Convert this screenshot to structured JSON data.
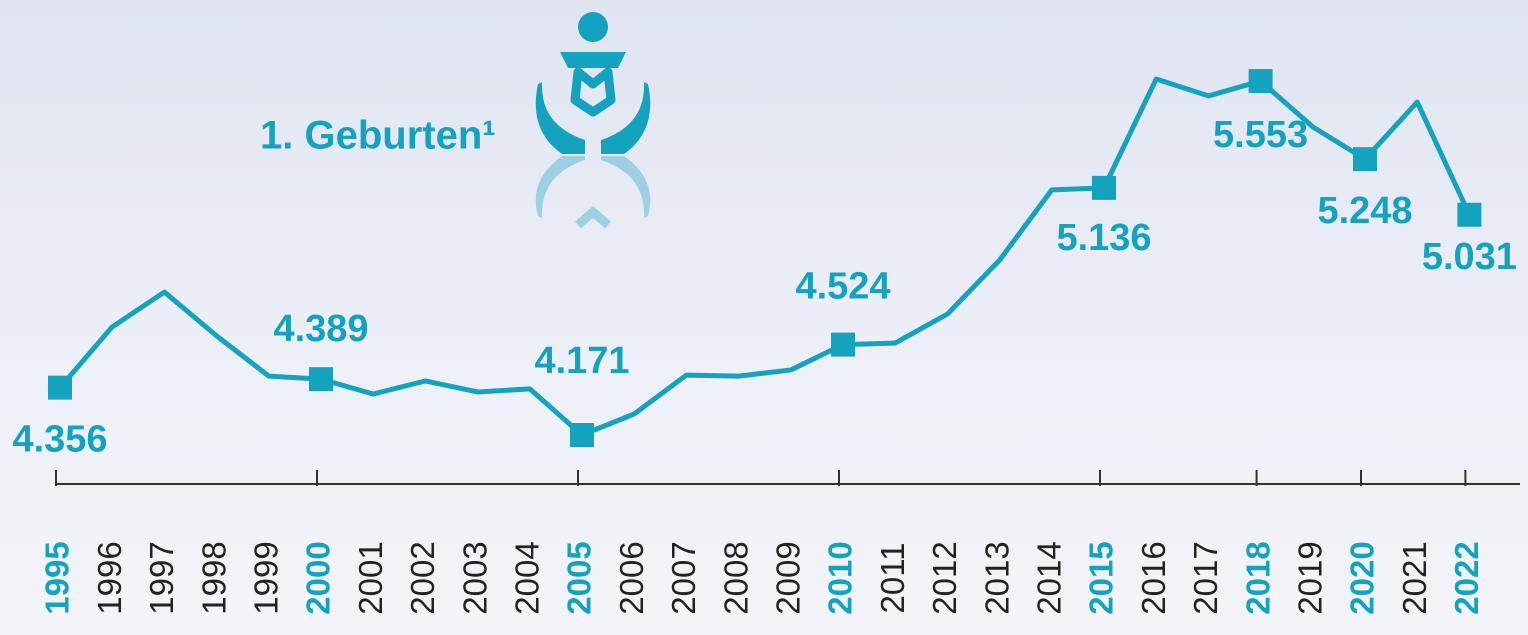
{
  "chart_data": {
    "type": "line",
    "title": "1. Geburten¹",
    "categories": [
      "1995",
      "1996",
      "1997",
      "1998",
      "1999",
      "2000",
      "2001",
      "2002",
      "2003",
      "2004",
      "2005",
      "2006",
      "2007",
      "2008",
      "2009",
      "2010",
      "2011",
      "2012",
      "2013",
      "2014",
      "2015",
      "2016",
      "2017",
      "2018",
      "2019",
      "2020",
      "2021",
      "2022"
    ],
    "values": [
      4356,
      4593,
      4729,
      4558,
      4401,
      4389,
      4331,
      4382,
      4339,
      4351,
      4171,
      4253,
      4405,
      4401,
      4425,
      4524,
      4530,
      4643,
      4854,
      5128,
      5136,
      5561,
      5495,
      5553,
      5374,
      5248,
      5471,
      5031
    ],
    "value_labels": [
      "4.356",
      null,
      null,
      null,
      null,
      "4.389",
      null,
      null,
      null,
      null,
      "4.171",
      null,
      null,
      null,
      null,
      "4.524",
      null,
      null,
      null,
      null,
      "5.136",
      null,
      null,
      "5.553",
      null,
      "5.248",
      null,
      "5.031"
    ],
    "color": "#14a3bf"
  }
}
